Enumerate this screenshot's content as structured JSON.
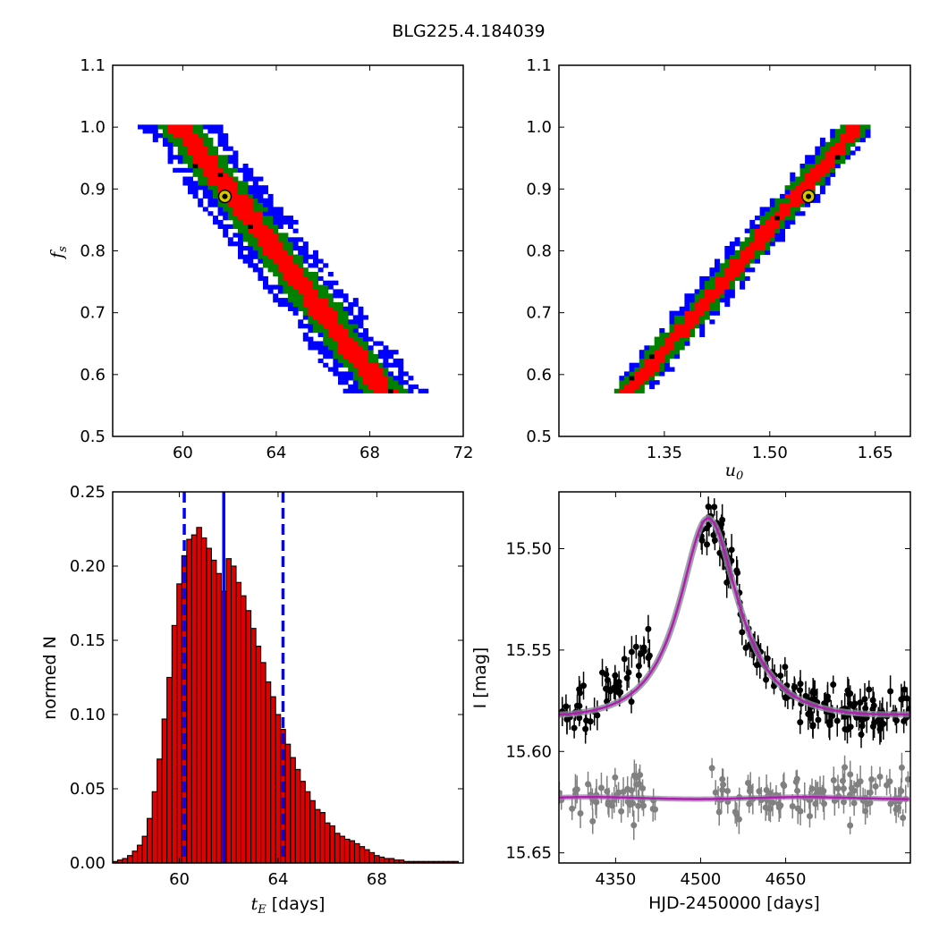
{
  "figure_title": "BLG225.4.184039",
  "colors": {
    "sigma1": "#ff0000",
    "sigma2": "#008000",
    "sigma3": "#0000ff",
    "best": "#000000",
    "marker_fill": "#d4c800",
    "hist_fill": "#e00000",
    "model": "#b01eb0",
    "model_glow": "#8a8a9a",
    "residual": "#808080",
    "data": "#000000"
  },
  "chart_data": [
    {
      "type": "heatmap",
      "panel": "top-left",
      "xlabel": "",
      "ylabel": "f_s",
      "xlim": [
        57,
        72
      ],
      "ylim": [
        0.5,
        1.1
      ],
      "xticks": [
        "60",
        "64",
        "68",
        "72"
      ],
      "yticks": [
        "0.5",
        "0.6",
        "0.7",
        "0.8",
        "0.9",
        "1.0",
        "1.1"
      ],
      "best_fit": {
        "x": 61.8,
        "y": 0.888
      },
      "band": {
        "type": "linear",
        "y_top": 1.0,
        "y_bottom": 0.57,
        "x_at_top": 59.8,
        "x_at_bottom": 68.6,
        "half_width": [
          1.7,
          0.9,
          0.5
        ]
      }
    },
    {
      "type": "heatmap",
      "panel": "top-right",
      "xlabel": "u_0",
      "ylabel": "",
      "xlim": [
        1.2,
        1.7
      ],
      "ylim": [
        0.5,
        1.1
      ],
      "xticks": [
        "1.35",
        "1.50",
        "1.65"
      ],
      "yticks": [
        "0.5",
        "0.6",
        "0.7",
        "0.8",
        "0.9",
        "1.0",
        "1.1"
      ],
      "best_fit": {
        "x": 1.555,
        "y": 0.888
      },
      "band": {
        "type": "linear",
        "y_top": 1.0,
        "y_bottom": 0.57,
        "x_at_top": 1.625,
        "x_at_bottom": 1.3,
        "half_width": [
          0.032,
          0.021,
          0.012
        ]
      }
    },
    {
      "type": "bar",
      "panel": "bottom-left",
      "xlabel": "t_E [days]",
      "ylabel": "normed N",
      "xlim": [
        57.3,
        71.5
      ],
      "ylim": [
        0,
        0.25
      ],
      "xticks": [
        "60",
        "64",
        "68"
      ],
      "yticks": [
        "0.00",
        "0.05",
        "0.10",
        "0.15",
        "0.20",
        "0.25"
      ],
      "bin_start": 57.3,
      "bin_width": 0.2,
      "values": [
        0.001,
        0.002,
        0.003,
        0.005,
        0.008,
        0.012,
        0.018,
        0.03,
        0.048,
        0.07,
        0.097,
        0.125,
        0.16,
        0.188,
        0.207,
        0.218,
        0.221,
        0.226,
        0.219,
        0.212,
        0.204,
        0.195,
        0.183,
        0.205,
        0.2,
        0.189,
        0.18,
        0.17,
        0.158,
        0.146,
        0.135,
        0.122,
        0.112,
        0.1,
        0.09,
        0.08,
        0.071,
        0.063,
        0.055,
        0.048,
        0.042,
        0.036,
        0.034,
        0.027,
        0.025,
        0.02,
        0.018,
        0.016,
        0.015,
        0.013,
        0.011,
        0.009,
        0.007,
        0.005,
        0.004,
        0.003,
        0.003,
        0.002,
        0.002,
        0.001,
        0.001,
        0.001,
        0.001,
        0.001,
        0.001,
        0.001,
        0.001,
        0.001,
        0.001,
        0.001
      ],
      "best_line": 61.8,
      "sigma_lines": [
        60.2,
        64.2
      ]
    },
    {
      "type": "scatter",
      "panel": "bottom-right",
      "xlabel": "HJD-2450000 [days]",
      "ylabel": "I [mag]",
      "xlim": [
        4250,
        4870
      ],
      "ylim": [
        15.655,
        15.472
      ],
      "y_inverted": true,
      "xticks": [
        "4350",
        "4500",
        "4650"
      ],
      "yticks": [
        "15.50",
        "15.55",
        "15.60",
        "15.65"
      ],
      "model": {
        "baseline": 15.592,
        "t0": 4513,
        "peak": 15.485,
        "rise_width": 75,
        "fall_width": 80
      },
      "residual_level": 15.623,
      "noise_level": 0.008
    }
  ]
}
